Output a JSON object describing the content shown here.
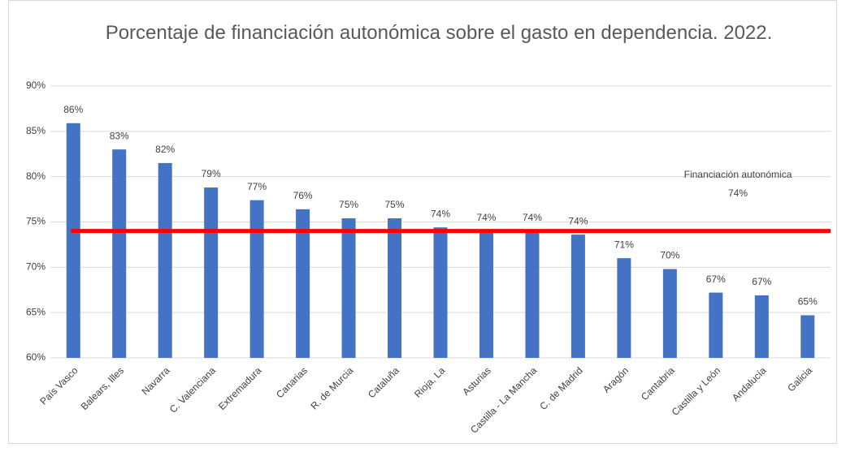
{
  "chart_data": {
    "type": "bar",
    "title": "Porcentaje de financiación autonómica sobre el gasto en dependencia. 2022.",
    "categories": [
      "País Vasco",
      "Balears, Illes",
      "Navarra",
      "C. Valenciana",
      "Extremadura",
      "Canarias",
      "R. de Murcia",
      "Cataluña",
      "Rioja, La",
      "Asturias",
      "Castilla - La Mancha",
      "C. de Madrid",
      "Aragón",
      "Cantabria",
      "Castilla y León",
      "Andalucía",
      "Galicia"
    ],
    "values": [
      85.9,
      83.0,
      81.5,
      78.8,
      77.4,
      76.4,
      75.4,
      75.4,
      74.4,
      74.0,
      74.0,
      73.6,
      71.0,
      69.8,
      67.2,
      66.9,
      64.7
    ],
    "value_labels": [
      "86%",
      "83%",
      "82%",
      "79%",
      "77%",
      "76%",
      "75%",
      "75%",
      "74%",
      "74%",
      "74%",
      "74%",
      "71%",
      "70%",
      "67%",
      "67%",
      "65%"
    ],
    "color": "#4472c4",
    "ylim": [
      60,
      90
    ],
    "yticks": [
      {
        "value": 60,
        "label": "60%"
      },
      {
        "value": 65,
        "label": "65%"
      },
      {
        "value": 70,
        "label": "70%"
      },
      {
        "value": 75,
        "label": "75%"
      },
      {
        "value": 80,
        "label": "80%"
      },
      {
        "value": 85,
        "label": "85%"
      },
      {
        "value": 90,
        "label": "90%"
      }
    ],
    "grid": true,
    "reference_line": {
      "value": 74,
      "color": "#ff0000",
      "label": [
        "Financiación autonómica",
        "74%"
      ]
    }
  }
}
